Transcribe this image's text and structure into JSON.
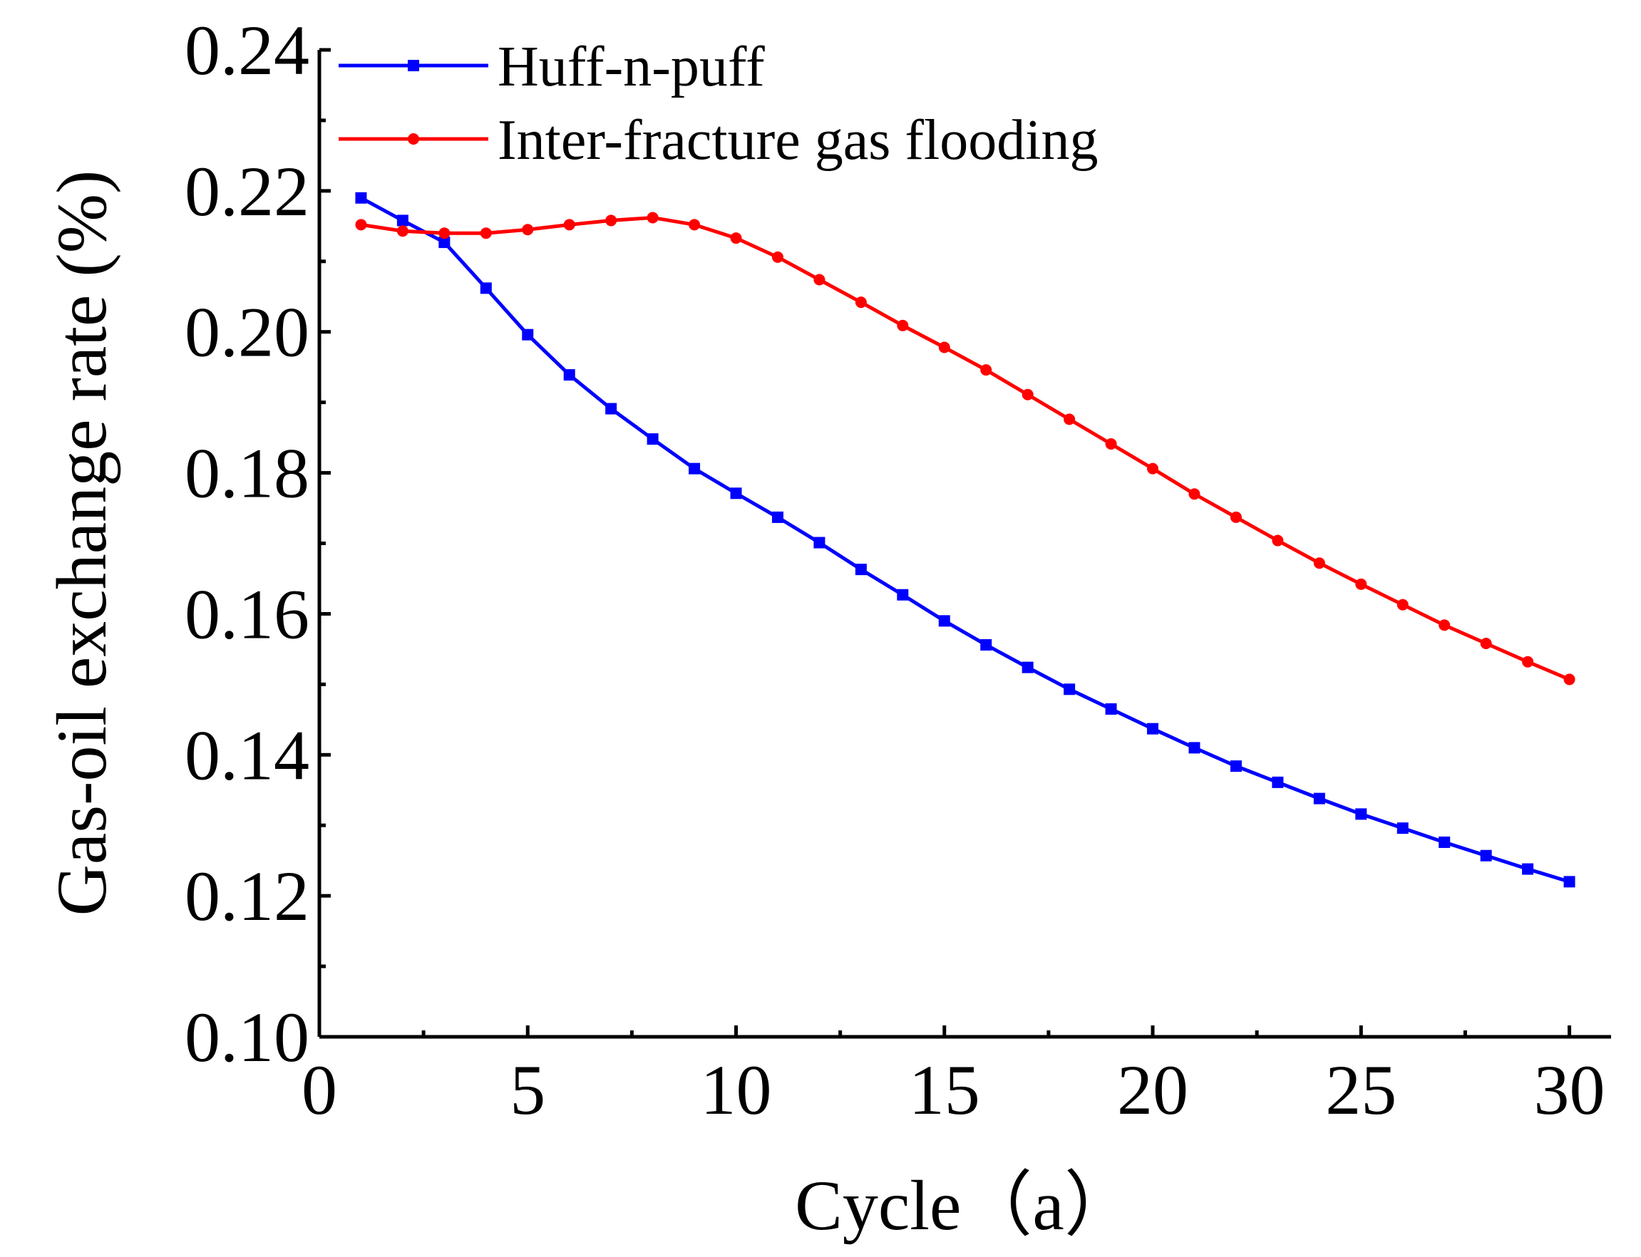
{
  "chart_data": {
    "type": "line",
    "title": "",
    "xlabel": "Cycle（a）",
    "ylabel": "Gas-oil exchange rate (%)",
    "xlim": [
      0,
      31
    ],
    "ylim": [
      0.1,
      0.24
    ],
    "x_ticks": [
      "0",
      "5",
      "10",
      "15",
      "20",
      "25",
      "30"
    ],
    "y_ticks": [
      "0.10",
      "0.12",
      "0.14",
      "0.16",
      "0.18",
      "0.20",
      "0.22",
      "0.24"
    ],
    "x_tick_values": [
      0,
      5,
      10,
      15,
      20,
      25,
      30
    ],
    "y_tick_values": [
      0.1,
      0.12,
      0.14,
      0.16,
      0.18,
      0.2,
      0.22,
      0.24
    ],
    "legend_position": "top-left",
    "x": [
      1,
      2,
      3,
      4,
      5,
      6,
      7,
      8,
      9,
      10,
      11,
      12,
      13,
      14,
      15,
      16,
      17,
      18,
      19,
      20,
      21,
      22,
      23,
      24,
      25,
      26,
      27,
      28,
      29,
      30
    ],
    "series": [
      {
        "name": "Huff-n-puff",
        "color": "#0000ff",
        "marker": "square",
        "values": [
          0.219,
          0.2158,
          0.2127,
          0.2062,
          0.1996,
          0.1939,
          0.1891,
          0.1848,
          0.1806,
          0.1771,
          0.1737,
          0.1701,
          0.1663,
          0.1627,
          0.159,
          0.1556,
          0.1524,
          0.1493,
          0.1465,
          0.1437,
          0.141,
          0.1384,
          0.1361,
          0.1338,
          0.1316,
          0.1296,
          0.1276,
          0.1257,
          0.1238,
          0.122
        ]
      },
      {
        "name": "Inter-fracture gas flooding",
        "color": "#ff0000",
        "marker": "circle",
        "values": [
          0.2152,
          0.2143,
          0.214,
          0.214,
          0.2145,
          0.2152,
          0.2158,
          0.2162,
          0.2152,
          0.2133,
          0.2106,
          0.2074,
          0.2042,
          0.2009,
          0.1978,
          0.1946,
          0.1911,
          0.1876,
          0.1841,
          0.1806,
          0.177,
          0.1737,
          0.1704,
          0.1672,
          0.1642,
          0.1613,
          0.1584,
          0.1558,
          0.1532,
          0.1507
        ]
      }
    ]
  }
}
